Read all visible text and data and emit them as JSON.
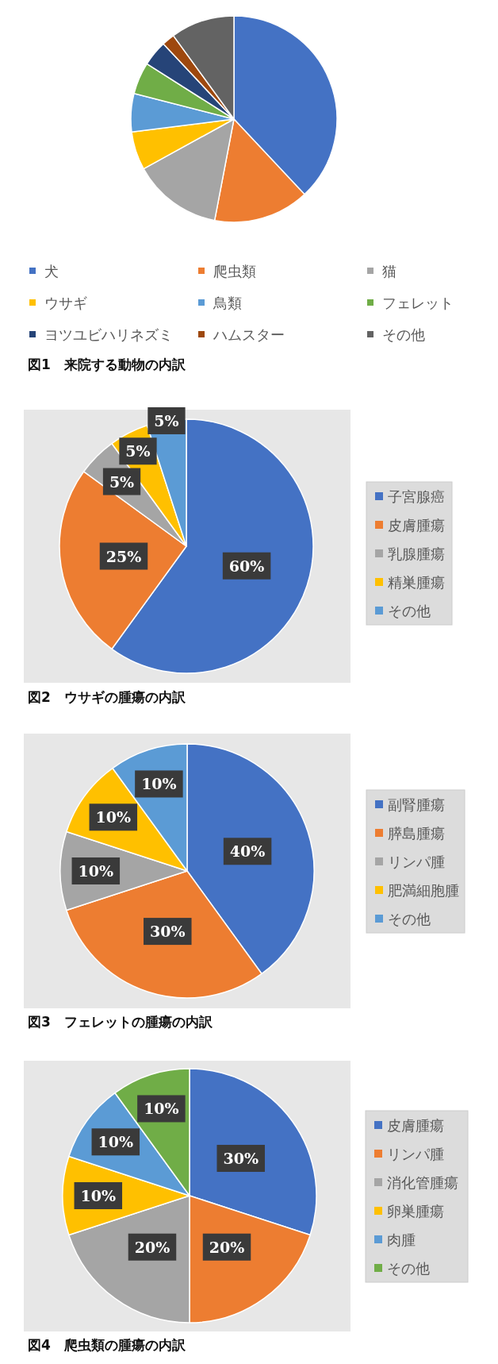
{
  "chart_data": [
    {
      "type": "pie",
      "title": "図1　来院する動物の内訳",
      "categories": [
        "犬",
        "爬虫類",
        "猫",
        "ウサギ",
        "鳥類",
        "フェレット",
        "ヨツユビハリネズミ",
        "ハムスター",
        "その他"
      ],
      "values": [
        38,
        15,
        14,
        6,
        6,
        5,
        4,
        2,
        10
      ],
      "colors": [
        "#4472c4",
        "#ed7d31",
        "#a5a5a5",
        "#ffc000",
        "#5b9bd5",
        "#70ad47",
        "#264478",
        "#9e480e",
        "#636363"
      ],
      "legend": "bottom"
    },
    {
      "type": "pie",
      "title": "図2　ウサギの腫瘍の内訳",
      "categories": [
        "子宮腺癌",
        "皮膚腫瘍",
        "乳腺腫瘍",
        "精巣腫瘍",
        "その他"
      ],
      "values": [
        60,
        25,
        5,
        5,
        5
      ],
      "colors": [
        "#4472c4",
        "#ed7d31",
        "#a5a5a5",
        "#ffc000",
        "#5b9bd5"
      ],
      "value_labels": [
        "60%",
        "25%",
        "5%",
        "5%",
        "5%"
      ],
      "legend": "right"
    },
    {
      "type": "pie",
      "title": "図3　フェレットの腫瘍の内訳",
      "categories": [
        "副腎腫瘍",
        "膵島腫瘍",
        "リンパ腫",
        "肥満細胞腫",
        "その他"
      ],
      "values": [
        40,
        30,
        10,
        10,
        10
      ],
      "colors": [
        "#4472c4",
        "#ed7d31",
        "#a5a5a5",
        "#ffc000",
        "#5b9bd5"
      ],
      "value_labels": [
        "40%",
        "30%",
        "10%",
        "10%",
        "10%"
      ],
      "legend": "right"
    },
    {
      "type": "pie",
      "title": "図4　爬虫類の腫瘍の内訳",
      "categories": [
        "皮膚腫瘍",
        "リンパ腫",
        "消化管腫瘍",
        "卵巣腫瘍",
        "肉腫",
        "その他"
      ],
      "values": [
        30,
        20,
        20,
        10,
        10,
        10
      ],
      "colors": [
        "#4472c4",
        "#ed7d31",
        "#a5a5a5",
        "#ffc000",
        "#5b9bd5",
        "#70ad47"
      ],
      "value_labels": [
        "30%",
        "20%",
        "20%",
        "10%",
        "10%",
        "10%"
      ],
      "legend": "right"
    }
  ]
}
